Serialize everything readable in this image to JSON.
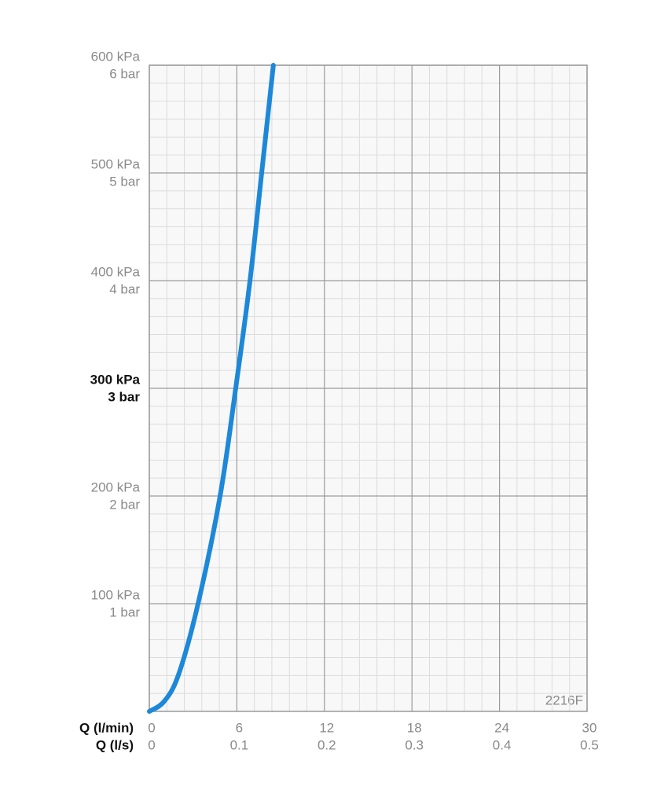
{
  "chart_data": {
    "type": "line",
    "x_label": "Q (l/min)",
    "x2_label": "Q (l/s)",
    "x": [
      0,
      1,
      2,
      3.34,
      4.85,
      5.92,
      6.9,
      7.7,
      8.5
    ],
    "series": [
      {
        "color": "#1e88d8",
        "values": [
          0,
          9,
          34,
          100,
          200,
          300,
          400,
          500,
          600
        ]
      }
    ],
    "xlim": [
      0,
      30
    ],
    "xticks": [
      0,
      6,
      12,
      18,
      24,
      30
    ],
    "x2lim": [
      0,
      0.5
    ],
    "x2ticks": [
      0,
      0.1,
      0.2,
      0.3,
      0.4,
      0.5
    ],
    "ylim": [
      0,
      600
    ],
    "yticks": [
      {
        "value": 100,
        "label": "100 kPa"
      },
      {
        "value": 200,
        "label": "200 kPa"
      },
      {
        "value": 300,
        "label": "300 kPa"
      },
      {
        "value": 400,
        "label": "400 kPa"
      },
      {
        "value": 500,
        "label": "500 kPa"
      },
      {
        "value": 600,
        "label": "600 kPa"
      }
    ],
    "y2lim": [
      0,
      6
    ],
    "y2ticks": [
      {
        "value": 1,
        "label": "1 bar"
      },
      {
        "value": 2,
        "label": "2 bar"
      },
      {
        "value": 3,
        "label": "3 bar"
      },
      {
        "value": 4,
        "label": "4 bar"
      },
      {
        "value": 5,
        "label": "5 bar"
      },
      {
        "value": 6,
        "label": "6 bar"
      }
    ],
    "highlight_ytick": 300,
    "grid": true,
    "x_minor_divisions": 5,
    "y_minor_divisions": 6,
    "annotation": "2216F"
  }
}
